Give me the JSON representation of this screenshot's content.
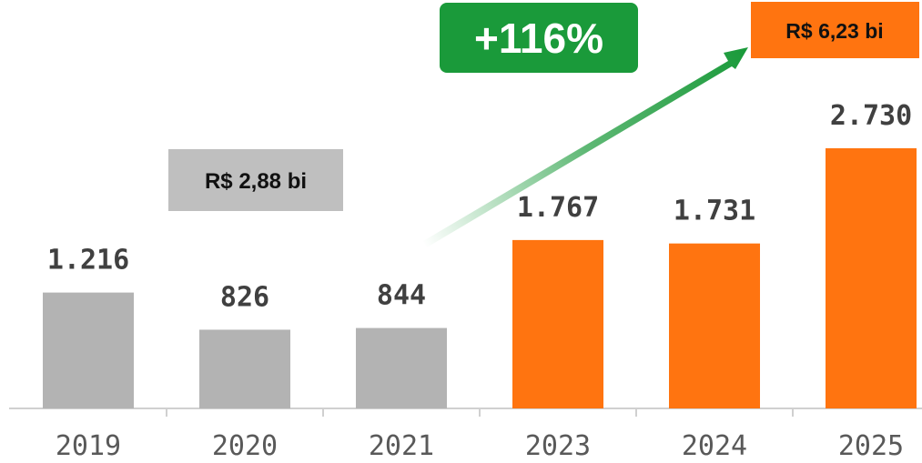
{
  "chart_data": {
    "type": "bar",
    "categories": [
      "2019",
      "2020",
      "2021",
      "2023",
      "2024",
      "2025"
    ],
    "values": [
      1216,
      826,
      844,
      1767,
      1731,
      2730
    ],
    "value_labels": [
      "1.216",
      "826",
      "844",
      "1.767",
      "1.731",
      "2.730"
    ],
    "colors": [
      "#b3b3b3",
      "#b3b3b3",
      "#b3b3b3",
      "#ff7410",
      "#ff7410",
      "#ff7410"
    ],
    "annotations": [
      "R$ 2,88 bi",
      "R$ 6,23 bi",
      "+116%"
    ]
  }
}
